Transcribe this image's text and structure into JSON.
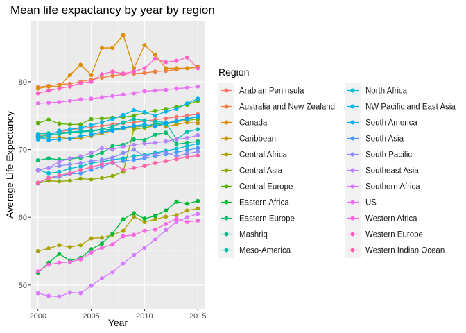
{
  "chart_data": {
    "type": "line",
    "title": "Mean life expactancy by year by region",
    "xlabel": "Year",
    "ylabel": "Average Life Expectancy",
    "xlim": [
      1999.3,
      2015.7
    ],
    "ylim": [
      46.5,
      89.0
    ],
    "x_ticks": [
      2000,
      2005,
      2010,
      2015
    ],
    "y_ticks": [
      50,
      60,
      70,
      80
    ],
    "grid": true,
    "legend_title": "Region",
    "legend_position": "right",
    "x": [
      2000,
      2001,
      2002,
      2003,
      2004,
      2005,
      2006,
      2007,
      2008,
      2009,
      2010,
      2011,
      2012,
      2013,
      2014,
      2015
    ],
    "series": [
      {
        "name": "Arabian Peninsula",
        "color": "#F8766D",
        "values": [
          72.0,
          72.3,
          72.6,
          72.9,
          73.1,
          73.3,
          73.5,
          73.7,
          73.9,
          74.0,
          74.2,
          74.4,
          74.6,
          74.8,
          75.0,
          75.2
        ]
      },
      {
        "name": "Australia and New Zealand",
        "color": "#EE8043",
        "values": [
          79.2,
          79.4,
          79.6,
          79.7,
          80.0,
          80.3,
          80.6,
          80.9,
          81.1,
          81.2,
          81.3,
          81.5,
          81.6,
          81.8,
          82.0,
          82.1
        ]
      },
      {
        "name": "Canada",
        "color": "#DE8C00",
        "values": [
          79.0,
          79.3,
          79.3,
          81.0,
          82.5,
          81.0,
          85.0,
          85.0,
          86.9,
          82.0,
          85.4,
          84.0,
          82.0,
          82.0,
          82.0,
          82.2
        ]
      },
      {
        "name": "Caribbean",
        "color": "#C99800",
        "values": [
          71.8,
          71.8,
          71.8,
          71.6,
          71.7,
          72.0,
          72.4,
          72.8,
          73.1,
          73.3,
          73.5,
          73.7,
          73.4,
          73.7,
          74.0,
          73.9
        ]
      },
      {
        "name": "Central Africa",
        "color": "#AEA200",
        "values": [
          55.0,
          55.4,
          55.9,
          55.6,
          55.9,
          56.9,
          57.0,
          57.4,
          58.0,
          60.1,
          59.3,
          59.7,
          60.1,
          60.3,
          61.0,
          61.3
        ]
      },
      {
        "name": "Central Asia",
        "color": "#8CAB00",
        "values": [
          65.0,
          65.4,
          65.3,
          65.4,
          65.7,
          65.6,
          65.8,
          66.1,
          66.7,
          73.0,
          73.2,
          73.5,
          73.8,
          74.1,
          74.3,
          74.5
        ]
      },
      {
        "name": "Central Europe",
        "color": "#5BB300",
        "values": [
          73.9,
          74.4,
          73.8,
          73.7,
          73.7,
          74.5,
          74.6,
          74.7,
          74.8,
          75.0,
          75.4,
          75.7,
          76.0,
          76.3,
          76.6,
          77.2
        ]
      },
      {
        "name": "Eastern Africa",
        "color": "#00BA38",
        "values": [
          51.8,
          53.3,
          54.6,
          53.6,
          54.0,
          55.3,
          56.1,
          57.6,
          59.7,
          60.6,
          59.8,
          60.2,
          61.0,
          62.3,
          62.0,
          62.4
        ]
      },
      {
        "name": "Eastern Europe",
        "color": "#00BE6C",
        "values": [
          68.4,
          68.7,
          68.5,
          68.6,
          68.8,
          69.0,
          69.5,
          70.5,
          70.7,
          71.5,
          71.4,
          72.2,
          72.5,
          70.8,
          71.0,
          71.2
        ]
      },
      {
        "name": "Mashriq",
        "color": "#00C08E",
        "values": [
          71.9,
          72.1,
          72.3,
          72.5,
          72.6,
          72.7,
          72.9,
          73.0,
          73.2,
          73.5,
          73.4,
          73.8,
          73.7,
          74.2,
          74.6,
          74.8
        ]
      },
      {
        "name": "Meso-America",
        "color": "#00C0AF",
        "values": [
          72.3,
          72.4,
          72.5,
          72.6,
          72.7,
          72.8,
          73.0,
          73.4,
          74.0,
          74.5,
          74.3,
          74.1,
          74.0,
          71.5,
          72.6,
          73.0
        ]
      },
      {
        "name": "North Africa",
        "color": "#00BCD0",
        "values": [
          67.0,
          66.5,
          66.7,
          67.2,
          67.5,
          68.0,
          68.2,
          68.5,
          68.7,
          69.0,
          69.2,
          69.5,
          69.8,
          70.1,
          70.5,
          70.9
        ]
      },
      {
        "name": "NW Pacific and East Asia",
        "color": "#00B5EB",
        "values": [
          71.5,
          72.0,
          72.8,
          73.0,
          73.2,
          73.6,
          74.0,
          74.5,
          75.1,
          75.8,
          75.5,
          75.0,
          75.6,
          76.0,
          76.8,
          77.5
        ]
      },
      {
        "name": "South America",
        "color": "#00A9FF",
        "values": [
          72.0,
          71.4,
          71.5,
          71.6,
          72.0,
          72.2,
          72.6,
          72.8,
          73.2,
          73.5,
          73.7,
          73.4,
          73.9,
          74.2,
          74.5,
          74.9
        ]
      },
      {
        "name": "South Asia",
        "color": "#4E9AFF",
        "values": [
          65.0,
          65.8,
          66.0,
          66.4,
          66.5,
          67.0,
          67.5,
          68.0,
          68.3,
          68.5,
          68.7,
          69.0,
          69.3,
          69.6,
          69.9,
          70.2
        ]
      },
      {
        "name": "South Pacific",
        "color": "#8E8CFF",
        "values": [
          67.0,
          67.3,
          67.6,
          67.8,
          68.0,
          68.3,
          68.5,
          68.8,
          69.5,
          70.0,
          69.0,
          69.3,
          69.6,
          69.0,
          69.4,
          69.7
        ]
      },
      {
        "name": "Southeast Asia",
        "color": "#B983FF",
        "values": [
          66.9,
          67.3,
          68.2,
          68.7,
          69.0,
          69.5,
          70.2,
          70.0,
          70.4,
          70.7,
          70.9,
          71.0,
          71.2,
          71.5,
          71.7,
          72.1
        ]
      },
      {
        "name": "Southern Africa",
        "color": "#D67BFF",
        "values": [
          48.8,
          48.4,
          48.3,
          48.9,
          48.8,
          49.9,
          51.0,
          51.9,
          53.2,
          54.4,
          55.5,
          56.7,
          58.1,
          59.3,
          60.0,
          60.5
        ]
      },
      {
        "name": "US",
        "color": "#EB70F3",
        "values": [
          76.8,
          76.9,
          77.0,
          77.2,
          77.4,
          77.5,
          77.7,
          77.9,
          78.1,
          78.3,
          78.6,
          78.7,
          78.8,
          79.0,
          79.1,
          79.3
        ]
      },
      {
        "name": "Western Africa",
        "color": "#F966DF",
        "values": [
          52.0,
          53.0,
          53.3,
          53.4,
          53.8,
          54.8,
          55.5,
          56.0,
          57.2,
          57.4,
          58.0,
          58.2,
          59.0,
          59.8,
          59.3,
          59.5
        ]
      },
      {
        "name": "Western Europe",
        "color": "#FE61C6",
        "values": [
          78.3,
          78.7,
          79.0,
          79.3,
          79.8,
          80.0,
          81.1,
          81.5,
          81.2,
          81.5,
          82.0,
          83.4,
          82.9,
          83.1,
          83.6,
          82.0
        ]
      },
      {
        "name": "Western Indian Ocean",
        "color": "#FF65AA",
        "values": [
          65.1,
          65.8,
          66.2,
          66.5,
          67.0,
          67.4,
          67.8,
          68.1,
          67.0,
          67.3,
          67.6,
          68.0,
          68.3,
          68.6,
          68.9,
          69.1
        ]
      }
    ]
  }
}
